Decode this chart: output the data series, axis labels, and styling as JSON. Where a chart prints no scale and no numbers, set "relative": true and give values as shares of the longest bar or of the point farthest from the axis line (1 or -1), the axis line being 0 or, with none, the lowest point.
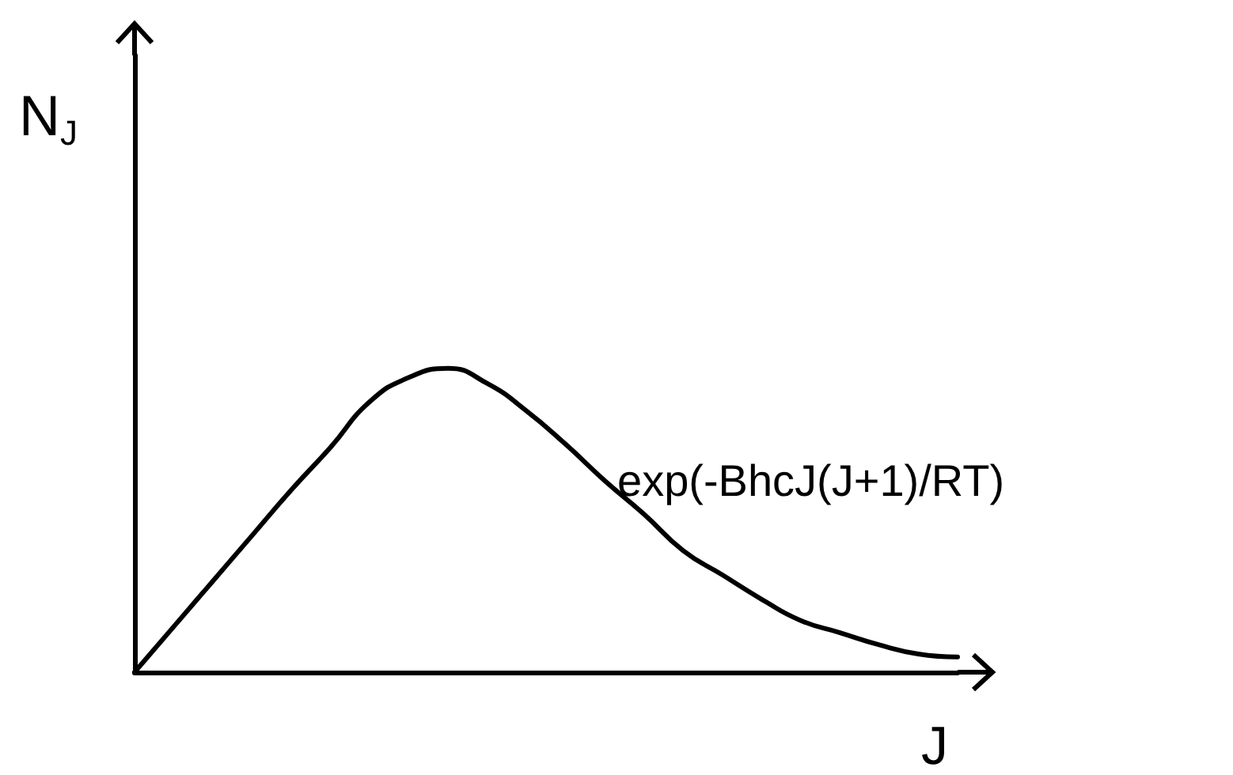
{
  "chart_data": {
    "type": "line",
    "relative": true,
    "xlabel": "J",
    "ylabel": "N$_{J}$",
    "annotations": [
      "exp(-BhcJ(J+1)/RT)"
    ],
    "color": "#000000",
    "marker": "none",
    "line_style": "solid",
    "grid": false,
    "categories": [
      null,
      null,
      null,
      null,
      null,
      null,
      null,
      null,
      null,
      null,
      null,
      null,
      null,
      null,
      null,
      null,
      null,
      null,
      null,
      null,
      null,
      null
    ],
    "values": [
      0,
      0.15,
      0.3,
      0.45,
      0.6,
      0.74,
      0.89,
      0.97,
      1,
      0.95,
      0.86,
      0.75,
      0.63,
      0.52,
      0.4,
      0.32,
      0.24,
      0.17,
      0.13,
      0.09,
      0.06,
      0.05
    ]
  }
}
